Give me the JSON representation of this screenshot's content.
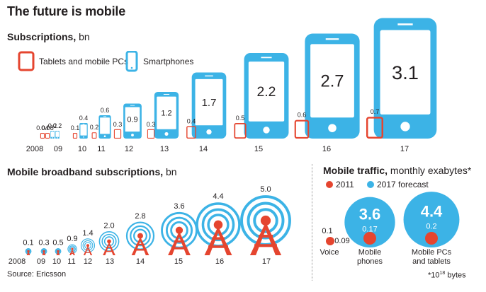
{
  "title": "The future is mobile",
  "colors": {
    "tablet": "#e5452f",
    "smartphone": "#3cb3e6",
    "text": "#231f20"
  },
  "subscriptions": {
    "heading": "Subscriptions,",
    "unit": " bn",
    "legend": {
      "tablets": "Tablets and mobile PCs",
      "smartphones": "Smartphones"
    }
  },
  "broadband": {
    "heading": "Mobile broadband subscriptions,",
    "unit": " bn"
  },
  "traffic": {
    "heading": "Mobile traffic,",
    "unit": " monthly exabytes*",
    "legend": {
      "y2011": "2011",
      "y2017": "2017 forecast"
    },
    "footnote_main": "*10",
    "footnote_exp": "18",
    "footnote_tail": " bytes"
  },
  "source": "Source: Ericsson",
  "chart_data": [
    {
      "type": "bar",
      "title": "Subscriptions, bn",
      "categories": [
        "2008",
        "09",
        "10",
        "11",
        "12",
        "13",
        "14",
        "15",
        "16",
        "17"
      ],
      "series": [
        {
          "name": "Tablets and mobile PCs",
          "values": [
            0.04,
            0.08,
            0.1,
            0.2,
            0.3,
            0.3,
            0.4,
            0.5,
            0.6,
            0.7
          ],
          "labels": [
            "0.04",
            "0.08",
            "0.1",
            "0.2",
            "0.3",
            "0.3",
            "0.4",
            "0.5",
            "0.6",
            "0.7"
          ]
        },
        {
          "name": "Smartphones",
          "values": [
            0.2,
            0.2,
            0.4,
            0.6,
            0.9,
            1.2,
            1.7,
            2.2,
            2.7,
            3.1
          ],
          "labels": [
            "0.2",
            "0.2",
            "0.4",
            "0.6",
            "0.9",
            "1.2",
            "1.7",
            "2.2",
            "2.7",
            "3.1"
          ]
        }
      ]
    },
    {
      "type": "bar",
      "title": "Mobile broadband subscriptions, bn",
      "categories": [
        "2008",
        "09",
        "10",
        "11",
        "12",
        "13",
        "14",
        "15",
        "16",
        "17"
      ],
      "values": [
        0.1,
        0.3,
        0.5,
        0.9,
        1.4,
        2.0,
        2.8,
        3.6,
        4.4,
        5.0
      ],
      "labels": [
        "0.1",
        "0.3",
        "0.5",
        "0.9",
        "1.4",
        "2.0",
        "2.8",
        "3.6",
        "4.4",
        "5.0"
      ]
    },
    {
      "type": "bubble",
      "title": "Mobile traffic, monthly exabytes*",
      "categories": [
        "Voice",
        "Mobile phones",
        "Mobile PCs and tablets"
      ],
      "category_lines": [
        [
          "Voice"
        ],
        [
          "Mobile",
          "phones"
        ],
        [
          "Mobile PCs",
          "and tablets"
        ]
      ],
      "series": [
        {
          "name": "2011",
          "values": [
            0.09,
            0.17,
            0.2
          ],
          "labels": [
            "0.09",
            "0.17",
            "0.2"
          ]
        },
        {
          "name": "2017 forecast",
          "values": [
            0.1,
            3.6,
            4.4
          ],
          "labels": [
            "0.1",
            "3.6",
            "4.4"
          ]
        }
      ]
    }
  ]
}
